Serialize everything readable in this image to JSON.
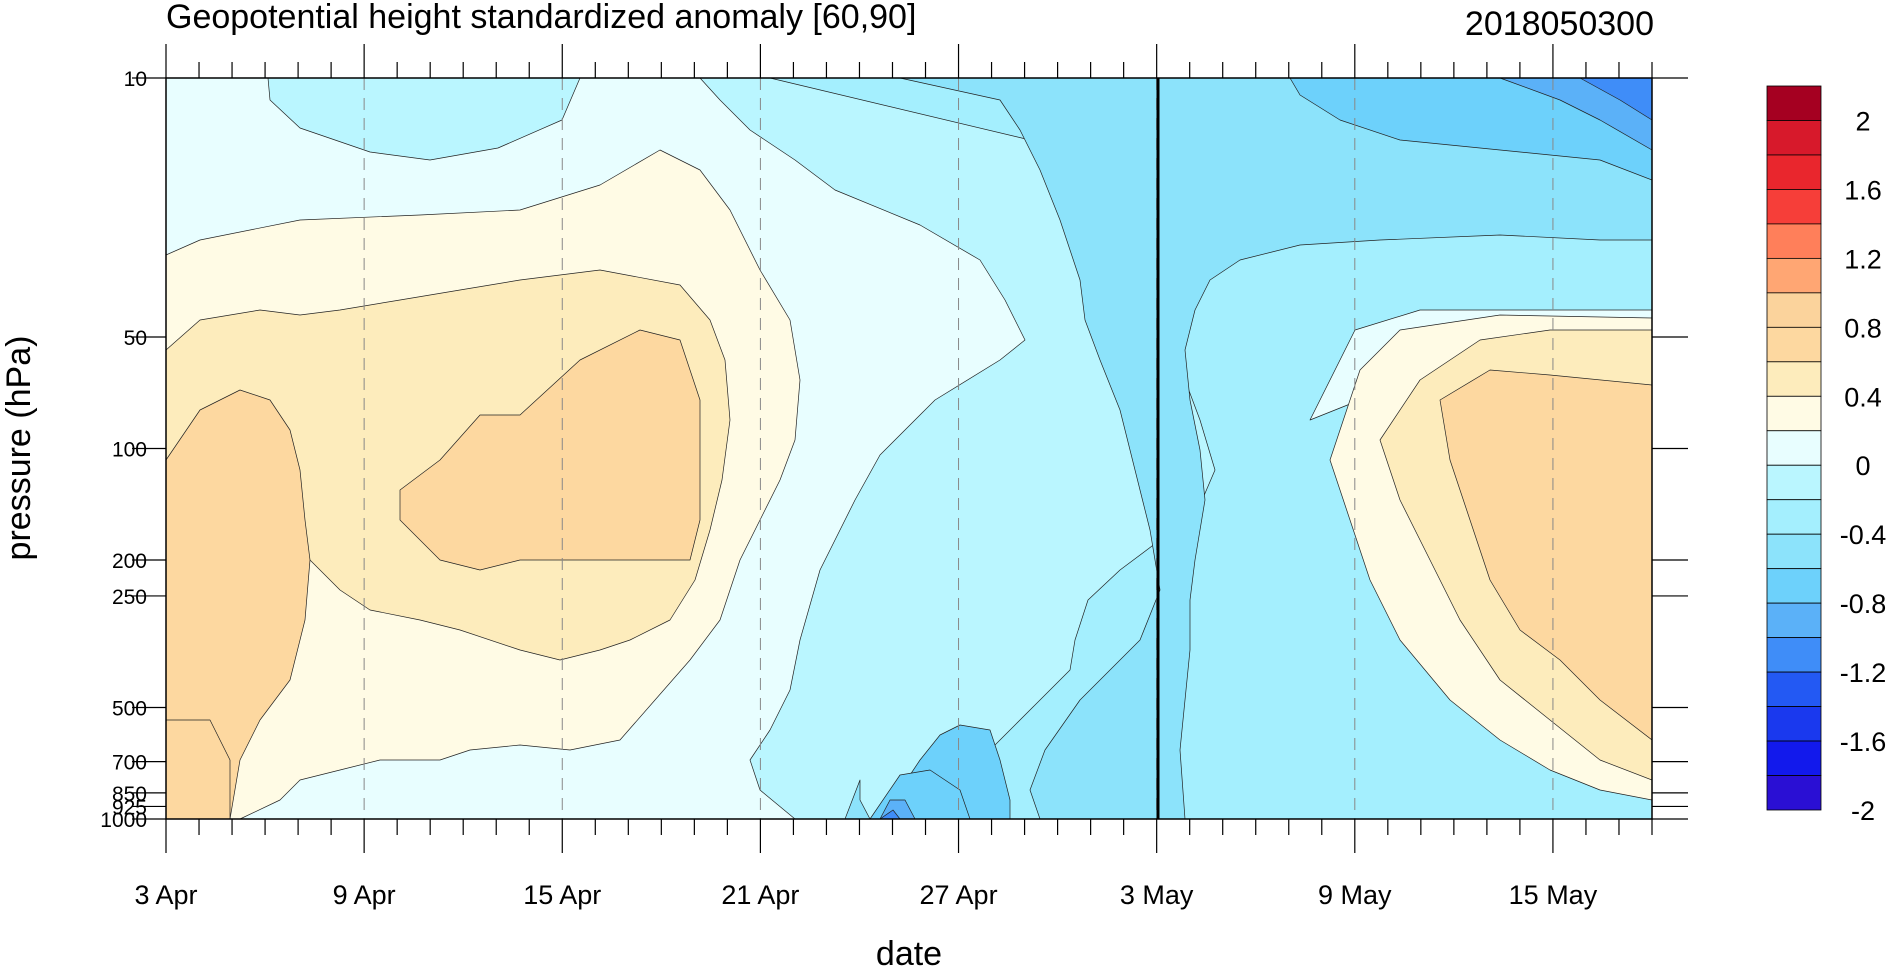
{
  "chart_data": {
    "type": "heatmap",
    "title": "Geopotential height standardized anomaly [60,90]",
    "title_right": "2018050300",
    "xlabel": "date",
    "ylabel": "pressure (hPa)",
    "x_tick_labels": [
      "3 Apr",
      "9 Apr",
      "15 Apr",
      "21 Apr",
      "27 Apr",
      "3 May",
      "9 May",
      "15 May"
    ],
    "x_range": [
      "3 Apr",
      "18 May"
    ],
    "y_ticks": [
      10,
      50,
      100,
      200,
      250,
      500,
      700,
      850,
      925,
      1000
    ],
    "y_scale": "log",
    "y_inverted": true,
    "y_range": [
      10,
      1000
    ],
    "marker_date": "3 May",
    "colorbar": {
      "levels": [
        "2",
        "1.6",
        "1.2",
        "0.8",
        "0.4",
        "0",
        "-0.4",
        "-0.8",
        "-1.2",
        "-1.6",
        "-2"
      ],
      "level_values": [
        -2,
        -1.8,
        -1.6,
        -1.4,
        -1.2,
        -1.0,
        -0.8,
        -0.6,
        -0.4,
        -0.2,
        0,
        0.2,
        0.4,
        0.6,
        0.8,
        1.0,
        1.2,
        1.4,
        1.6,
        1.8,
        2.0
      ],
      "colors_top_to_bottom": [
        "#a50021",
        "#d7192b",
        "#e9262d",
        "#f63e39",
        "#ff7f5a",
        "#ffa673",
        "#fbd39c",
        "#fdd8a0",
        "#fdecbc",
        "#fffbe5",
        "#e8feff",
        "#baf6ff",
        "#a4effe",
        "#8ce3fb",
        "#6dd1fb",
        "#5bb1f8",
        "#3f8df8",
        "#2359f3",
        "#1a39ee",
        "#1219ec",
        "#2a0fd4"
      ]
    },
    "contour_fills": {
      "band_colors": {
        "n1.2": "#3f8df8",
        "n1.0": "#5bb1f8",
        "n0.8": "#6dd1fb",
        "n0.6": "#8ce3fb",
        "n0.4": "#a4effe",
        "n0.2": "#baf6ff",
        "z0.0": "#e8feff",
        "p0.2": "#fffbe5",
        "p0.4": "#fdecbc",
        "p0.6": "#fdd8a0"
      }
    }
  }
}
